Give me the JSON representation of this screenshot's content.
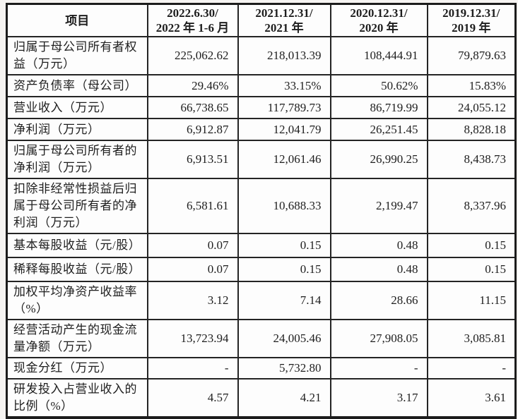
{
  "table": {
    "columns": [
      {
        "lines": [
          "项目"
        ]
      },
      {
        "lines": [
          "2022.6.30/",
          "2022 年 1-6 月"
        ]
      },
      {
        "lines": [
          "2021.12.31/",
          "2021 年"
        ]
      },
      {
        "lines": [
          "2020.12.31/",
          "2020 年"
        ]
      },
      {
        "lines": [
          "2019.12.31/",
          "2019 年"
        ]
      }
    ],
    "rows": [
      {
        "label": "归属于母公司所有者权益（万元）",
        "values": [
          "225,062.62",
          "218,013.39",
          "108,444.91",
          "79,879.63"
        ]
      },
      {
        "label": "资产负债率（母公司）",
        "values": [
          "29.46%",
          "33.15%",
          "50.62%",
          "15.83%"
        ]
      },
      {
        "label": "营业收入（万元）",
        "values": [
          "66,738.65",
          "117,789.73",
          "86,719.99",
          "24,055.12"
        ]
      },
      {
        "label": "净利润（万元）",
        "values": [
          "6,912.87",
          "12,041.79",
          "26,251.45",
          "8,828.18"
        ]
      },
      {
        "label": "归属于母公司所有者的净利润（万元）",
        "values": [
          "6,913.51",
          "12,061.46",
          "26,990.25",
          "8,438.73"
        ]
      },
      {
        "label": "扣除非经常性损益后归属于母公司所有者的净利润（万元）",
        "values": [
          "6,581.61",
          "10,688.33",
          "2,199.47",
          "8,337.96"
        ]
      },
      {
        "label": "基本每股收益（元/股）",
        "values": [
          "0.07",
          "0.15",
          "0.48",
          "0.15"
        ]
      },
      {
        "label": "稀释每股收益（元/股）",
        "values": [
          "0.07",
          "0.15",
          "0.48",
          "0.15"
        ]
      },
      {
        "label": "加权平均净资产收益率（%）",
        "values": [
          "3.12",
          "7.14",
          "28.66",
          "11.15"
        ]
      },
      {
        "label": "经营活动产生的现金流量净额（万元）",
        "values": [
          "13,723.94",
          "24,005.46",
          "27,908.05",
          "3,085.81"
        ]
      },
      {
        "label": "现金分红（万元）",
        "values": [
          "-",
          "5,732.80",
          "-",
          "-"
        ]
      },
      {
        "label": "研发投入占营业收入的比例（%）",
        "values": [
          "4.57",
          "4.21",
          "3.17",
          "3.61"
        ]
      }
    ],
    "colors": {
      "border": "#1c1c1c",
      "text": "#1e1e1e",
      "cell_background": "#fdfdfd",
      "page_background": "#f6f4f2"
    }
  }
}
